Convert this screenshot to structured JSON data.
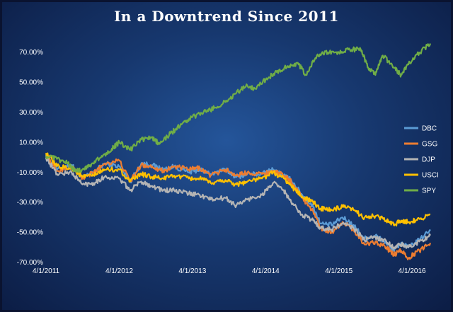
{
  "chart_data": {
    "type": "line",
    "title": "In a Downtrend  Since 2011",
    "xlabel": "",
    "ylabel": "",
    "x_ticks": [
      "4/1/2011",
      "4/1/2012",
      "4/1/2013",
      "4/1/2014",
      "4/1/2015",
      "4/1/2016"
    ],
    "y_ticks": [
      "70.00%",
      "50.00%",
      "30.00%",
      "10.00%",
      "-10.00%",
      "-30.00%",
      "-50.00%",
      "-70.00%"
    ],
    "ylim": [
      -70,
      80
    ],
    "xlim": [
      2011.25,
      2016.5
    ],
    "grid": false,
    "legend_position": "right",
    "series": [
      {
        "name": "DBC",
        "color": "#5b9bd5",
        "x": [
          2011.25,
          2011.4,
          2011.6,
          2011.75,
          2011.9,
          2012.05,
          2012.25,
          2012.4,
          2012.55,
          2012.7,
          2012.85,
          2013.0,
          2013.2,
          2013.35,
          2013.5,
          2013.7,
          2013.85,
          2014.0,
          2014.2,
          2014.35,
          2014.5,
          2014.6,
          2014.75,
          2014.9,
          2015.0,
          2015.15,
          2015.3,
          2015.45,
          2015.6,
          2015.75,
          2015.9,
          2016.0,
          2016.1,
          2016.2,
          2016.35,
          2016.5
        ],
        "y": [
          2,
          -8,
          -5,
          -14,
          -10,
          -4,
          -6,
          -16,
          -4,
          -5,
          -8,
          -6,
          -10,
          -8,
          -11,
          -8,
          -13,
          -11,
          -11,
          -8,
          -12,
          -15,
          -25,
          -33,
          -44,
          -45,
          -40,
          -45,
          -54,
          -52,
          -57,
          -62,
          -57,
          -60,
          -55,
          -48
        ]
      },
      {
        "name": "GSG",
        "color": "#ed7d31",
        "x": [
          2011.25,
          2011.4,
          2011.6,
          2011.75,
          2011.9,
          2012.05,
          2012.25,
          2012.4,
          2012.55,
          2012.7,
          2012.85,
          2013.0,
          2013.2,
          2013.35,
          2013.5,
          2013.7,
          2013.85,
          2014.0,
          2014.2,
          2014.35,
          2014.5,
          2014.6,
          2014.75,
          2014.9,
          2015.0,
          2015.15,
          2015.3,
          2015.45,
          2015.6,
          2015.75,
          2015.9,
          2016.0,
          2016.1,
          2016.2,
          2016.35,
          2016.5
        ],
        "y": [
          1,
          -9,
          -6,
          -14,
          -10,
          -4,
          -2,
          -16,
          -5,
          -6,
          -9,
          -6,
          -8,
          -7,
          -12,
          -8,
          -12,
          -10,
          -11,
          -9,
          -12,
          -16,
          -27,
          -36,
          -47,
          -50,
          -43,
          -48,
          -58,
          -56,
          -60,
          -65,
          -62,
          -67,
          -62,
          -57
        ]
      },
      {
        "name": "DJP",
        "color": "#b4b4b4",
        "x": [
          2011.25,
          2011.4,
          2011.6,
          2011.75,
          2011.9,
          2012.05,
          2012.25,
          2012.4,
          2012.55,
          2012.7,
          2012.85,
          2013.0,
          2013.2,
          2013.35,
          2013.5,
          2013.7,
          2013.85,
          2014.0,
          2014.2,
          2014.35,
          2014.5,
          2014.6,
          2014.75,
          2014.9,
          2015.0,
          2015.15,
          2015.3,
          2015.45,
          2015.6,
          2015.75,
          2015.9,
          2016.0,
          2016.1,
          2016.2,
          2016.35,
          2016.5
        ],
        "y": [
          0,
          -11,
          -10,
          -18,
          -17,
          -13,
          -14,
          -22,
          -16,
          -19,
          -22,
          -22,
          -24,
          -25,
          -28,
          -27,
          -32,
          -28,
          -25,
          -17,
          -22,
          -30,
          -38,
          -42,
          -47,
          -48,
          -44,
          -47,
          -55,
          -53,
          -56,
          -60,
          -58,
          -60,
          -56,
          -52
        ]
      },
      {
        "name": "USCI",
        "color": "#ffc000",
        "x": [
          2011.25,
          2011.4,
          2011.6,
          2011.75,
          2011.9,
          2012.05,
          2012.25,
          2012.4,
          2012.55,
          2012.7,
          2012.85,
          2013.0,
          2013.2,
          2013.35,
          2013.5,
          2013.7,
          2013.85,
          2014.0,
          2014.2,
          2014.35,
          2014.5,
          2014.6,
          2014.75,
          2014.9,
          2015.0,
          2015.15,
          2015.3,
          2015.45,
          2015.6,
          2015.75,
          2015.9,
          2016.0,
          2016.1,
          2016.2,
          2016.35,
          2016.5
        ],
        "y": [
          3,
          -6,
          -7,
          -13,
          -12,
          -8,
          -8,
          -16,
          -11,
          -13,
          -14,
          -12,
          -14,
          -14,
          -17,
          -15,
          -18,
          -16,
          -14,
          -10,
          -14,
          -19,
          -26,
          -30,
          -34,
          -35,
          -33,
          -35,
          -40,
          -39,
          -42,
          -45,
          -42,
          -43,
          -41,
          -38
        ]
      },
      {
        "name": "SPY",
        "color": "#70ad47",
        "x": [
          2011.25,
          2011.4,
          2011.55,
          2011.65,
          2011.75,
          2011.85,
          2012.0,
          2012.15,
          2012.25,
          2012.4,
          2012.55,
          2012.7,
          2012.8,
          2012.95,
          2013.1,
          2013.25,
          2013.4,
          2013.55,
          2013.7,
          2013.85,
          2014.0,
          2014.1,
          2014.25,
          2014.4,
          2014.55,
          2014.7,
          2014.8,
          2014.95,
          2015.1,
          2015.25,
          2015.4,
          2015.55,
          2015.65,
          2015.75,
          2015.85,
          2016.0,
          2016.1,
          2016.2,
          2016.35,
          2016.5
        ],
        "y": [
          1,
          -1,
          -4,
          -9,
          -8,
          -5,
          0,
          6,
          10,
          5,
          12,
          13,
          9,
          16,
          22,
          27,
          30,
          33,
          37,
          43,
          48,
          46,
          52,
          57,
          61,
          62,
          55,
          68,
          70,
          70,
          72,
          72,
          60,
          55,
          68,
          60,
          55,
          62,
          70,
          76
        ]
      }
    ]
  }
}
